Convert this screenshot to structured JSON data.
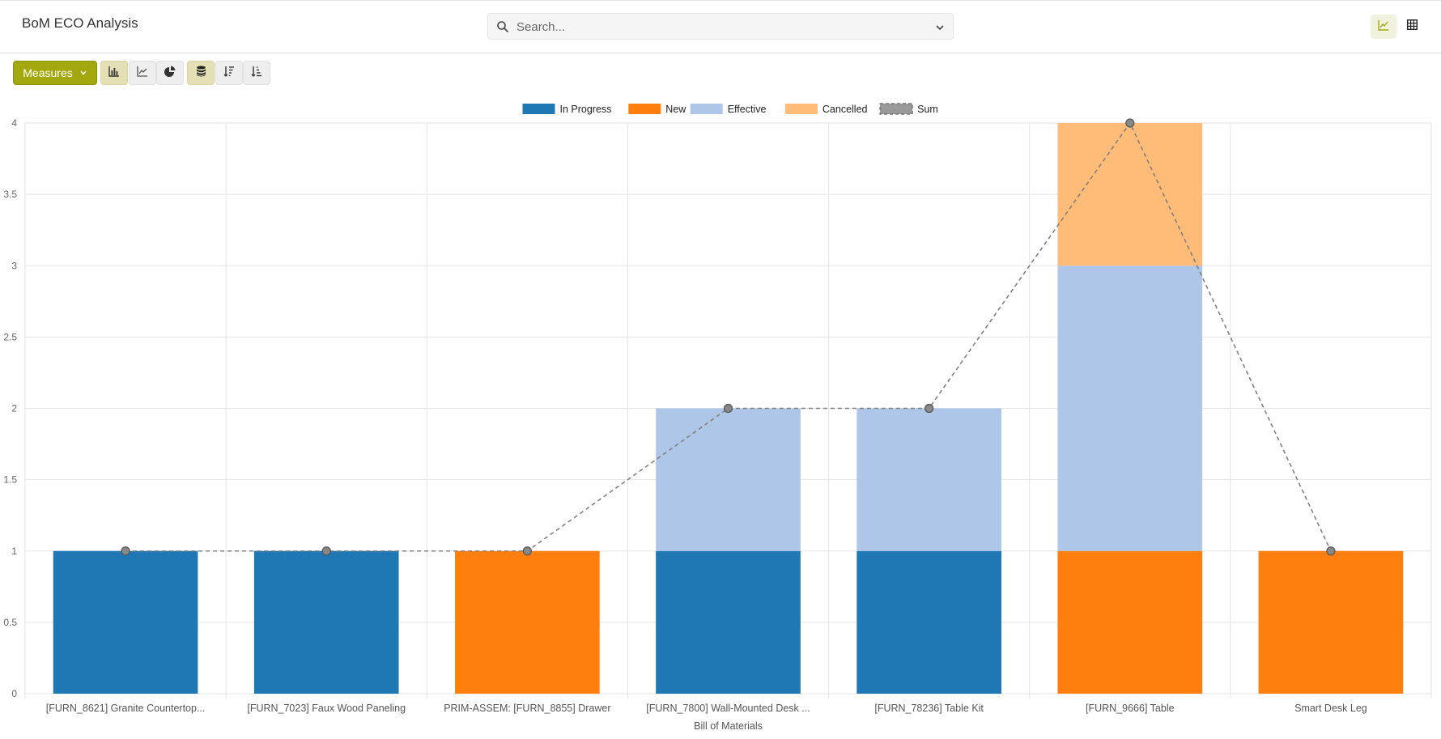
{
  "app": {
    "title": "BoM ECO Analysis"
  },
  "search": {
    "placeholder": "Search..."
  },
  "view_switcher": {
    "active": "graph",
    "icons": [
      "line-chart-icon",
      "table-icon"
    ]
  },
  "toolbar": {
    "measures_label": "Measures",
    "buttons": [
      "bar-chart-icon",
      "line-chart-icon",
      "pie-chart-icon",
      "stacked-icon",
      "sort-descending-icon",
      "sort-ascending-icon"
    ],
    "active_buttons": [
      "bar-chart-icon",
      "stacked-icon"
    ]
  },
  "colors": {
    "accent": "#a3a80f",
    "In Progress": "#1f77b4",
    "New": "#ff7f0e",
    "Effective": "#aec7e8",
    "Cancelled": "#ffbb78",
    "Sum": "#808080"
  },
  "chart_data": {
    "type": "bar",
    "stacked": true,
    "categories": [
      "[FURN_8621] Granite Countertop...",
      "[FURN_7023] Faux Wood Paneling",
      "PRIM-ASSEM: [FURN_8855] Drawer",
      "[FURN_7800] Wall-Mounted Desk ...",
      "[FURN_78236] Table Kit",
      "[FURN_9666] Table",
      "Smart Desk Leg"
    ],
    "series": [
      {
        "name": "In Progress",
        "values": [
          1,
          1,
          0,
          1,
          1,
          0,
          0
        ]
      },
      {
        "name": "New",
        "values": [
          0,
          0,
          1,
          0,
          0,
          1,
          1
        ]
      },
      {
        "name": "Effective",
        "values": [
          0,
          0,
          0,
          1,
          1,
          2,
          0
        ]
      },
      {
        "name": "Cancelled",
        "values": [
          0,
          0,
          0,
          0,
          0,
          1,
          0
        ]
      }
    ],
    "sum_line": {
      "name": "Sum",
      "values": [
        1,
        1,
        1,
        2,
        2,
        4,
        1
      ]
    },
    "xlabel": "Bill of Materials",
    "ylabel": "",
    "ylim": [
      0,
      4
    ],
    "yticks": [
      "0",
      "0.5",
      "1",
      "1.5",
      "2",
      "2.5",
      "3",
      "3.5",
      "4"
    ],
    "grid": true,
    "legend": "top-center"
  }
}
